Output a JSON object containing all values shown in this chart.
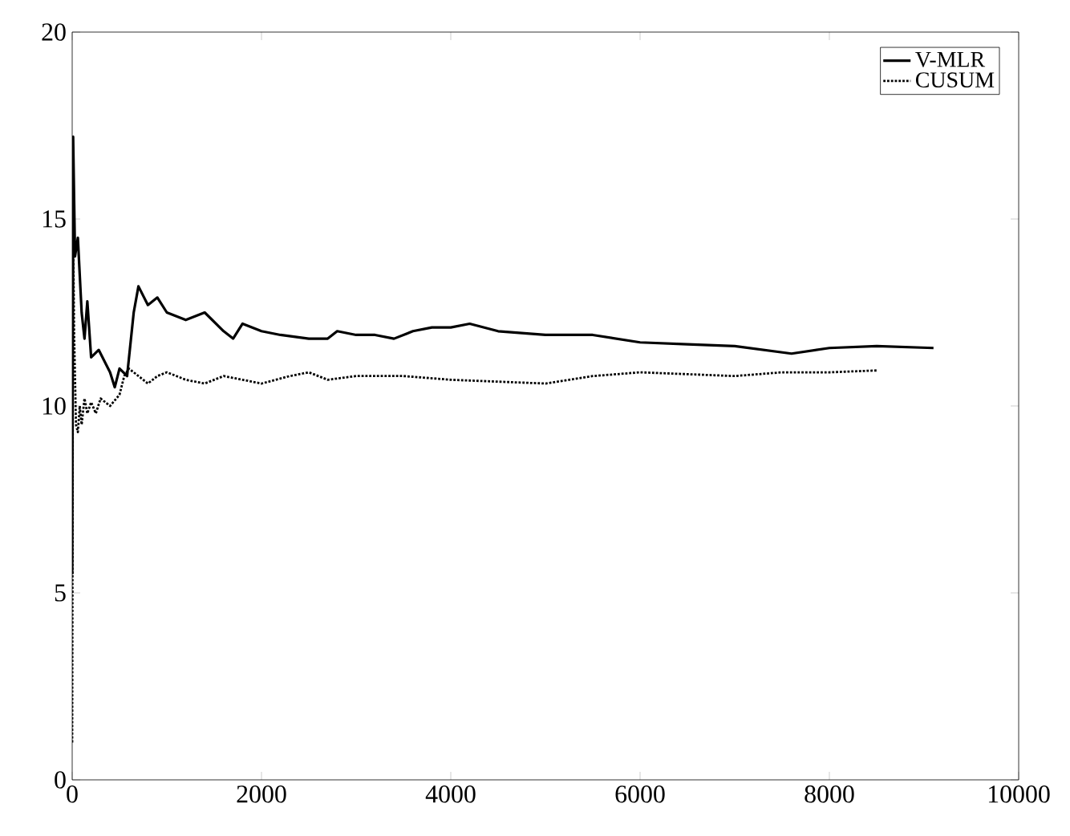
{
  "chart_data": {
    "type": "line",
    "xlim": [
      0,
      10000
    ],
    "ylim": [
      0,
      20
    ],
    "xticks": [
      0,
      2000,
      4000,
      6000,
      8000,
      10000
    ],
    "yticks": [
      0,
      5,
      10,
      15,
      20
    ],
    "legend": "top right",
    "grid": false,
    "series": [
      {
        "name": "V-MLR",
        "color": "#000000",
        "line_style": "solid",
        "x": [
          0,
          10,
          30,
          60,
          100,
          130,
          160,
          200,
          280,
          400,
          450,
          500,
          580,
          650,
          700,
          800,
          900,
          1000,
          1200,
          1400,
          1600,
          1700,
          1800,
          2000,
          2200,
          2500,
          2700,
          2800,
          3000,
          3200,
          3400,
          3600,
          3800,
          4000,
          4200,
          4500,
          5000,
          5500,
          6000,
          6500,
          7000,
          7600,
          8000,
          8500,
          9100
        ],
        "values": [
          5.5,
          17.2,
          14,
          14.5,
          12.5,
          11.8,
          12.8,
          11.3,
          11.5,
          10.9,
          10.5,
          11,
          10.8,
          12.5,
          13.2,
          12.7,
          12.9,
          12.5,
          12.3,
          12.5,
          12,
          11.8,
          12.2,
          12,
          11.9,
          11.8,
          11.8,
          12,
          11.9,
          11.9,
          11.8,
          12,
          12.1,
          12.1,
          12.2,
          12,
          11.9,
          11.9,
          11.7,
          11.65,
          11.6,
          11.4,
          11.55,
          11.6,
          11.55
        ]
      },
      {
        "name": "CUSUM",
        "color": "#000000",
        "line_style": "dotted",
        "x": [
          0,
          10,
          20,
          40,
          60,
          80,
          100,
          130,
          160,
          200,
          250,
          300,
          400,
          500,
          550,
          600,
          700,
          800,
          900,
          1000,
          1200,
          1400,
          1600,
          1800,
          2000,
          2300,
          2500,
          2700,
          3000,
          3500,
          4000,
          4500,
          5000,
          5500,
          6000,
          6500,
          7000,
          7500,
          8000,
          8500
        ],
        "values": [
          1,
          14.8,
          12,
          9.5,
          9.3,
          10,
          9.5,
          10.2,
          9.8,
          10.1,
          9.8,
          10.2,
          10,
          10.3,
          10.8,
          11,
          10.8,
          10.6,
          10.8,
          10.9,
          10.7,
          10.6,
          10.8,
          10.7,
          10.6,
          10.8,
          10.9,
          10.7,
          10.8,
          10.8,
          10.7,
          10.65,
          10.6,
          10.8,
          10.9,
          10.85,
          10.8,
          10.9,
          10.9,
          10.95
        ]
      }
    ]
  }
}
